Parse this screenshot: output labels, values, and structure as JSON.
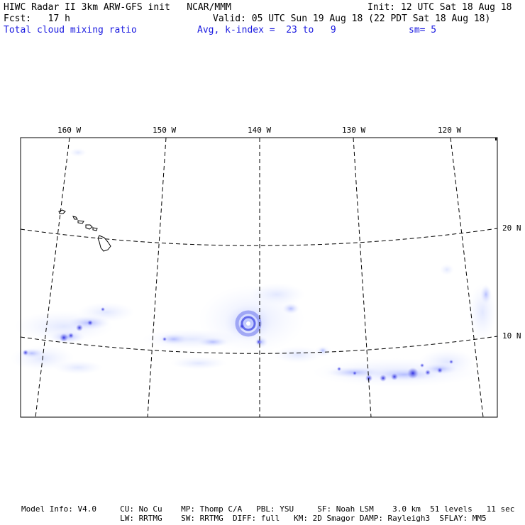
{
  "header": {
    "line1_left": "HIWC Radar II 3km ARW-GFS init   NCAR/MMM",
    "line1_right": "Init: 12 UTC Sat 18 Aug 18",
    "line2_left": "Fcst:   17 h",
    "line2_right": "Valid: 05 UTC Sun 19 Aug 18 (22 PDT Sat 18 Aug 18)",
    "field_name": "Total cloud mixing ratio",
    "avg_info": "Avg, k-index =  23 to   9",
    "smooth_info": "sm= 5"
  },
  "map": {
    "lon_labels": [
      "160 W",
      "150 W",
      "140 W",
      "130 W",
      "120 W"
    ],
    "lat_labels": [
      "20 N",
      "10 N"
    ],
    "color_field": "#2a2ae0"
  },
  "footer": {
    "line1": "Model Info: V4.0     CU: No Cu    MP: Thomp C/A   PBL: YSU     SF: Noah LSM    3.0 km  51 levels   11 sec",
    "line2": "                     LW: RRTMG    SW: RRTMG  DIFF: full   KM: 2D Smagor DAMP: Rayleigh3  SFLAY: MM5"
  }
}
